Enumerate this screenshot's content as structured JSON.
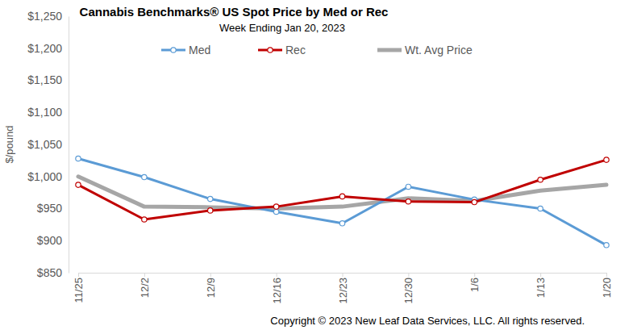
{
  "chart_data": {
    "type": "line",
    "title": "Cannabis Benchmarks® US Spot Price by Med or Rec",
    "subtitle": "Week Ending Jan 20, 2023",
    "y_label": "$/pound",
    "annotations": [
      "Copyright © 2023 New Leaf Data Services, LLC. All rights reserved."
    ],
    "categories": [
      "11/25",
      "12/2",
      "12/9",
      "12/16",
      "12/23",
      "12/30",
      "1/6",
      "1/13",
      "1/20"
    ],
    "series": [
      {
        "name": "Med",
        "color": "#5b9bd5",
        "marker": "circle",
        "line_style": "solid",
        "values": [
          1028,
          999,
          965,
          945,
          927,
          984,
          964,
          950,
          893
        ]
      },
      {
        "name": "Rec",
        "color": "#c00000",
        "marker": "circle",
        "line_style": "solid",
        "values": [
          987,
          933,
          947,
          953,
          969,
          961,
          960,
          995,
          1026
        ]
      },
      {
        "name": "Wt. Avg Price",
        "color": "#a6a6a6",
        "marker": "none",
        "line_style": "solid",
        "values": [
          1000,
          953,
          952,
          950,
          953,
          966,
          962,
          978,
          987
        ]
      }
    ],
    "ylim": [
      850,
      1250
    ],
    "yticks": [
      {
        "value": 850,
        "label": "$850"
      },
      {
        "value": 900,
        "label": "$900"
      },
      {
        "value": 950,
        "label": "$950"
      },
      {
        "value": 1000,
        "label": "$1,000"
      },
      {
        "value": 1050,
        "label": "$1,050"
      },
      {
        "value": 1100,
        "label": "$1,100"
      },
      {
        "value": 1150,
        "label": "$1,150"
      },
      {
        "value": 1200,
        "label": "$1,200"
      },
      {
        "value": 1250,
        "label": "$1,250"
      }
    ],
    "grid": false,
    "legend": "top"
  }
}
